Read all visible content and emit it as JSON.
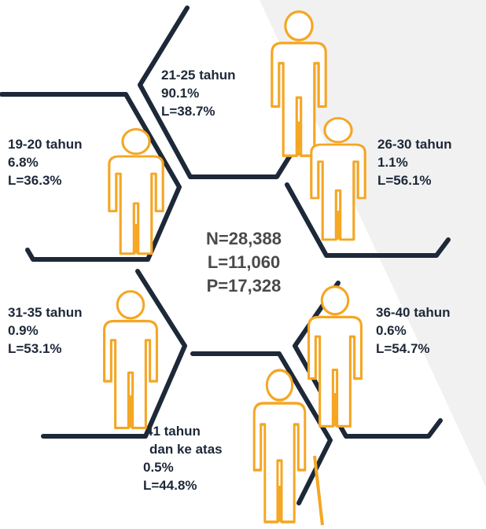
{
  "center": [
    "N=28,388",
    "L=11,060",
    "P=17,328"
  ],
  "groups": [
    {
      "age": "21-25 tahun",
      "share": "90.1%",
      "male": "L=38.7%"
    },
    {
      "age": "19-20 tahun",
      "share": "6.8%",
      "male": "L=36.3%"
    },
    {
      "age": "26-30 tahun",
      "share": "1.1%",
      "male": "L=56.1%"
    },
    {
      "age": "31-35 tahun",
      "share": "0.9%",
      "male": "L=53.1%"
    },
    {
      "age": "36-40 tahun",
      "share": "0.6%",
      "male": "L=54.7%"
    },
    {
      "age": [
        "41 tahun",
        "dan ke atas"
      ],
      "share": "0.5%",
      "male": "L=44.8%"
    }
  ]
}
